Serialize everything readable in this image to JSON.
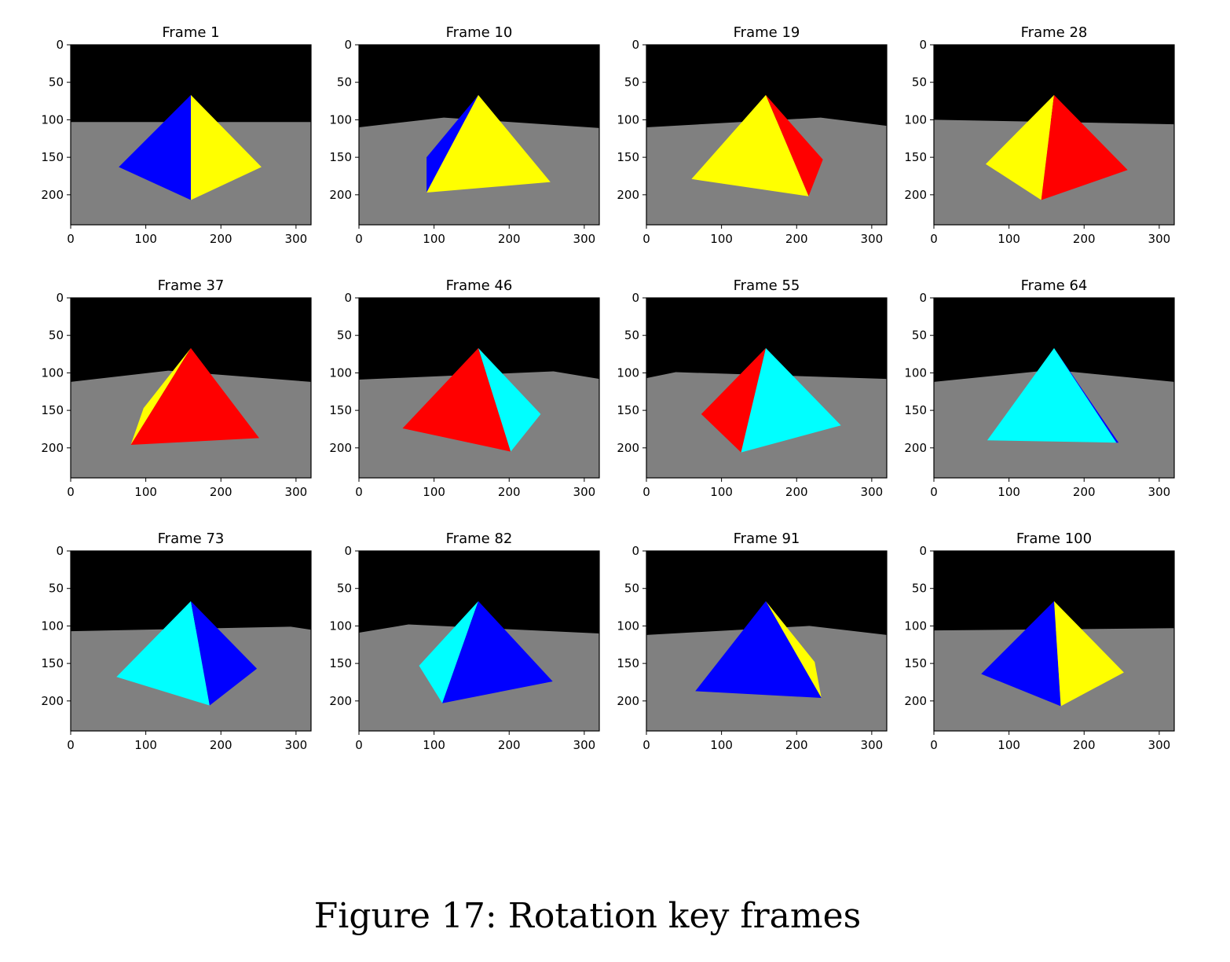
{
  "caption": "Figure 17: Rotation key frames",
  "chart_data": {
    "type": "image-grid",
    "image_extent": {
      "x": [
        0,
        320
      ],
      "y": [
        0,
        240
      ]
    },
    "x_ticks": [
      "0",
      "100",
      "200",
      "300"
    ],
    "y_ticks": [
      "0",
      "50",
      "100",
      "150",
      "200"
    ],
    "colors": {
      "sky": "#000000",
      "ground": "#808080",
      "blue": "#0000ff",
      "yellow": "#ffff00",
      "red": "#ff0000",
      "cyan": "#00ffff"
    },
    "frames": [
      {
        "title": "Frame 1",
        "horizon": [
          [
            0,
            103
          ],
          [
            320,
            103
          ]
        ],
        "faces": [
          {
            "color": "blue",
            "points": [
              [
                160,
                67
              ],
              [
                64,
                163
              ],
              [
                160,
                207
              ]
            ]
          },
          {
            "color": "yellow",
            "points": [
              [
                160,
                67
              ],
              [
                160,
                207
              ],
              [
                254,
                163
              ]
            ]
          }
        ]
      },
      {
        "title": "Frame 10",
        "horizon": [
          [
            0,
            110
          ],
          [
            113,
            97
          ],
          [
            320,
            111
          ]
        ],
        "faces": [
          {
            "color": "blue",
            "points": [
              [
                159,
                67
              ],
              [
                90,
                150
              ],
              [
                90,
                197
              ]
            ]
          },
          {
            "color": "yellow",
            "points": [
              [
                159,
                67
              ],
              [
                90,
                197
              ],
              [
                255,
                183
              ]
            ]
          }
        ]
      },
      {
        "title": "Frame 19",
        "horizon": [
          [
            0,
            110
          ],
          [
            232,
            97
          ],
          [
            320,
            108
          ]
        ],
        "faces": [
          {
            "color": "red",
            "points": [
              [
                159,
                67
              ],
              [
                235,
                153
              ],
              [
                216,
                202
              ]
            ]
          },
          {
            "color": "yellow",
            "points": [
              [
                159,
                67
              ],
              [
                60,
                179
              ],
              [
                216,
                202
              ]
            ]
          }
        ]
      },
      {
        "title": "Frame 28",
        "horizon": [
          [
            0,
            100
          ],
          [
            320,
            106
          ]
        ],
        "faces": [
          {
            "color": "yellow",
            "points": [
              [
                160,
                67
              ],
              [
                69,
                159
              ],
              [
                143,
                207
              ]
            ]
          },
          {
            "color": "red",
            "points": [
              [
                160,
                67
              ],
              [
                143,
                207
              ],
              [
                258,
                167
              ]
            ]
          }
        ]
      },
      {
        "title": "Frame 37",
        "horizon": [
          [
            0,
            112
          ],
          [
            130,
            97
          ],
          [
            320,
            112
          ]
        ],
        "faces": [
          {
            "color": "yellow",
            "points": [
              [
                160,
                67
              ],
              [
                97,
                147
              ],
              [
                80,
                196
              ]
            ]
          },
          {
            "color": "red",
            "points": [
              [
                160,
                67
              ],
              [
                80,
                196
              ],
              [
                251,
                187
              ]
            ]
          }
        ]
      },
      {
        "title": "Frame 46",
        "horizon": [
          [
            0,
            109
          ],
          [
            259,
            98
          ],
          [
            320,
            108
          ]
        ],
        "faces": [
          {
            "color": "red",
            "points": [
              [
                159,
                67
              ],
              [
                58,
                174
              ],
              [
                202,
                205
              ]
            ]
          },
          {
            "color": "cyan",
            "points": [
              [
                159,
                67
              ],
              [
                202,
                205
              ],
              [
                242,
                155
              ]
            ]
          }
        ]
      },
      {
        "title": "Frame 55",
        "horizon": [
          [
            0,
            107
          ],
          [
            39,
            99
          ],
          [
            320,
            108
          ]
        ],
        "faces": [
          {
            "color": "red",
            "points": [
              [
                159,
                67
              ],
              [
                73,
                155
              ],
              [
                126,
                206
              ]
            ]
          },
          {
            "color": "cyan",
            "points": [
              [
                159,
                67
              ],
              [
                126,
                206
              ],
              [
                259,
                170
              ]
            ]
          }
        ]
      },
      {
        "title": "Frame 64",
        "horizon": [
          [
            0,
            112
          ],
          [
            158,
            96
          ],
          [
            320,
            112
          ]
        ],
        "faces": [
          {
            "color": "blue",
            "points": [
              [
                160,
                67
              ],
              [
                246,
                193
              ],
              [
                241,
                193
              ]
            ]
          },
          {
            "color": "cyan",
            "points": [
              [
                160,
                67
              ],
              [
                71,
                190
              ],
              [
                243,
                193
              ]
            ]
          }
        ]
      },
      {
        "title": "Frame 73",
        "horizon": [
          [
            0,
            107
          ],
          [
            293,
            101
          ],
          [
            320,
            105
          ]
        ],
        "faces": [
          {
            "color": "cyan",
            "points": [
              [
                160,
                67
              ],
              [
                61,
                168
              ],
              [
                185,
                206
              ]
            ]
          },
          {
            "color": "blue",
            "points": [
              [
                160,
                67
              ],
              [
                185,
                206
              ],
              [
                248,
                157
              ]
            ]
          }
        ]
      },
      {
        "title": "Frame 82",
        "horizon": [
          [
            0,
            109
          ],
          [
            66,
            98
          ],
          [
            320,
            110
          ]
        ],
        "faces": [
          {
            "color": "cyan",
            "points": [
              [
                159,
                67
              ],
              [
                80,
                153
              ],
              [
                111,
                203
              ]
            ]
          },
          {
            "color": "blue",
            "points": [
              [
                159,
                67
              ],
              [
                111,
                203
              ],
              [
                258,
                174
              ]
            ]
          }
        ]
      },
      {
        "title": "Frame 91",
        "horizon": [
          [
            0,
            112
          ],
          [
            217,
            100
          ],
          [
            320,
            112
          ]
        ],
        "faces": [
          {
            "color": "yellow",
            "points": [
              [
                159,
                67
              ],
              [
                233,
                196
              ],
              [
                224,
                148
              ]
            ]
          },
          {
            "color": "blue",
            "points": [
              [
                159,
                67
              ],
              [
                65,
                187
              ],
              [
                233,
                196
              ]
            ]
          }
        ]
      },
      {
        "title": "Frame 100",
        "horizon": [
          [
            0,
            106
          ],
          [
            320,
            103
          ]
        ],
        "faces": [
          {
            "color": "blue",
            "points": [
              [
                160,
                67
              ],
              [
                63,
                164
              ],
              [
                169,
                207
              ]
            ]
          },
          {
            "color": "yellow",
            "points": [
              [
                160,
                67
              ],
              [
                169,
                207
              ],
              [
                253,
                162
              ]
            ]
          }
        ]
      }
    ]
  }
}
